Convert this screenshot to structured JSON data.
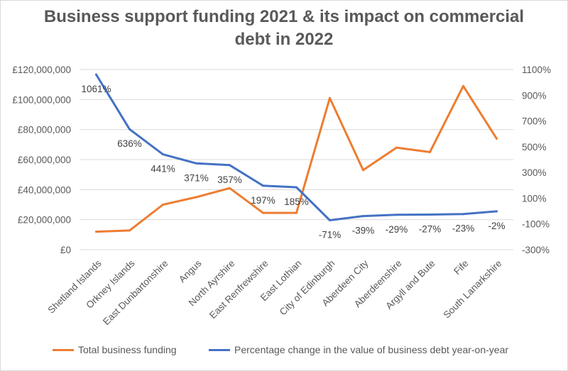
{
  "chart_data": {
    "type": "line",
    "title_lines": [
      "Business support funding 2021 & its impact on commercial",
      "debt in 2022"
    ],
    "categories": [
      "Shetland Islands",
      "Orkney Islands",
      "East Dunbartonshire",
      "Angus",
      "North Ayrshire",
      "East Renfrewshire",
      "East Lothian",
      "City of Edinburgh",
      "Aberdeen City",
      "Aberdeenshire",
      "Argyll and Bute",
      "Fife",
      "South Lanarkshire"
    ],
    "series": [
      {
        "name": "Total business funding",
        "axis": "left",
        "color": "#ED7D31",
        "values": [
          12000000,
          12800000,
          30000000,
          35000000,
          41000000,
          24500000,
          24500000,
          101000000,
          53000000,
          68000000,
          65000000,
          109000000,
          74000000
        ]
      },
      {
        "name": "Percentage change in the value of business debt year-on-year",
        "axis": "right",
        "color": "#4472C4",
        "values": [
          1061,
          636,
          441,
          371,
          357,
          197,
          185,
          -71,
          -39,
          -29,
          -27,
          -23,
          -2
        ],
        "data_labels": [
          "1061%",
          "636%",
          "441%",
          "371%",
          "357%",
          "197%",
          "185%",
          "-71%",
          "-39%",
          "-29%",
          "-27%",
          "-23%",
          "-2%"
        ]
      }
    ],
    "y_left": {
      "min": 0,
      "max": 120000000,
      "ticks": [
        0,
        20000000,
        40000000,
        60000000,
        80000000,
        100000000,
        120000000
      ],
      "tick_labels": [
        "£0",
        "£20,000,000",
        "£40,000,000",
        "£60,000,000",
        "£80,000,000",
        "£100,000,000",
        "£120,000,000"
      ]
    },
    "y_right": {
      "min": -300,
      "max": 1100,
      "ticks": [
        -300,
        -100,
        100,
        300,
        500,
        700,
        900,
        1100
      ],
      "tick_labels": [
        "-300%",
        "-100%",
        "100%",
        "300%",
        "500%",
        "700%",
        "900%",
        "1100%"
      ]
    },
    "grid": true,
    "legend_position": "bottom"
  }
}
